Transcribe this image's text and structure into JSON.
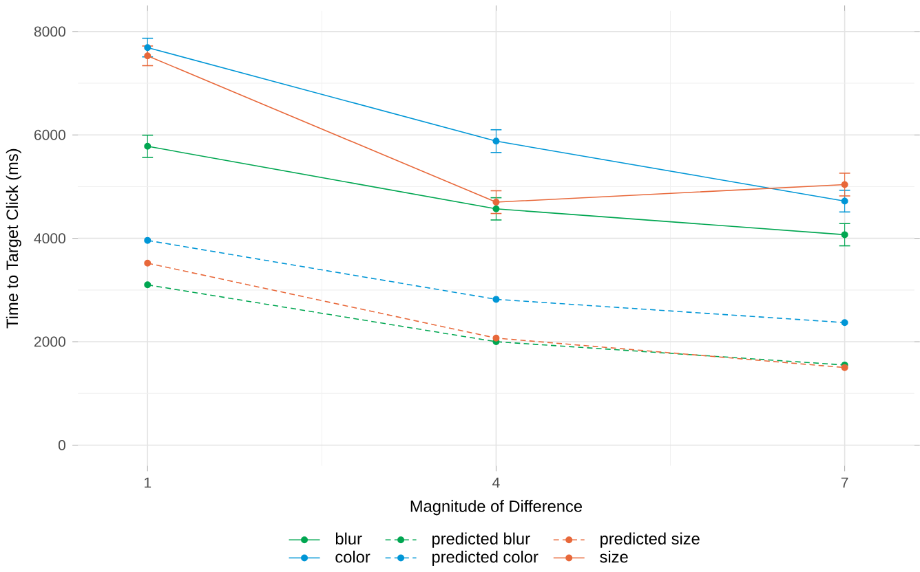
{
  "chart_data": {
    "type": "line",
    "xlabel": "Magnitude of Difference",
    "ylabel": "Time to Target Click (ms)",
    "x": [
      1,
      4,
      7
    ],
    "xlim": [
      0.4,
      7.6
    ],
    "xticks": [
      1,
      4,
      7
    ],
    "ylim": [
      -400,
      8400
    ],
    "yticks": [
      0,
      2000,
      4000,
      6000,
      8000
    ],
    "grid": true,
    "legend": "bottom",
    "marker": "circle",
    "series": [
      {
        "name": "blur",
        "color": "#00a651",
        "values": [
          5780,
          4570,
          4070
        ],
        "errors": [
          215,
          215,
          215
        ],
        "line_style": "solid"
      },
      {
        "name": "color",
        "color": "#0096d6",
        "values": [
          7690,
          5880,
          4720
        ],
        "errors": [
          180,
          220,
          210
        ],
        "line_style": "solid"
      },
      {
        "name": "predicted blur",
        "color": "#00a651",
        "values": [
          3100,
          2000,
          1550
        ],
        "line_style": "dashed"
      },
      {
        "name": "predicted color",
        "color": "#0096d6",
        "values": [
          3960,
          2820,
          2370
        ],
        "line_style": "dashed"
      },
      {
        "name": "predicted size",
        "color": "#e8683a",
        "values": [
          3520,
          2070,
          1500
        ],
        "line_style": "dashed"
      },
      {
        "name": "size",
        "color": "#e8683a",
        "values": [
          7530,
          4700,
          5040
        ],
        "errors": [
          190,
          220,
          220
        ],
        "line_style": "solid"
      }
    ]
  }
}
